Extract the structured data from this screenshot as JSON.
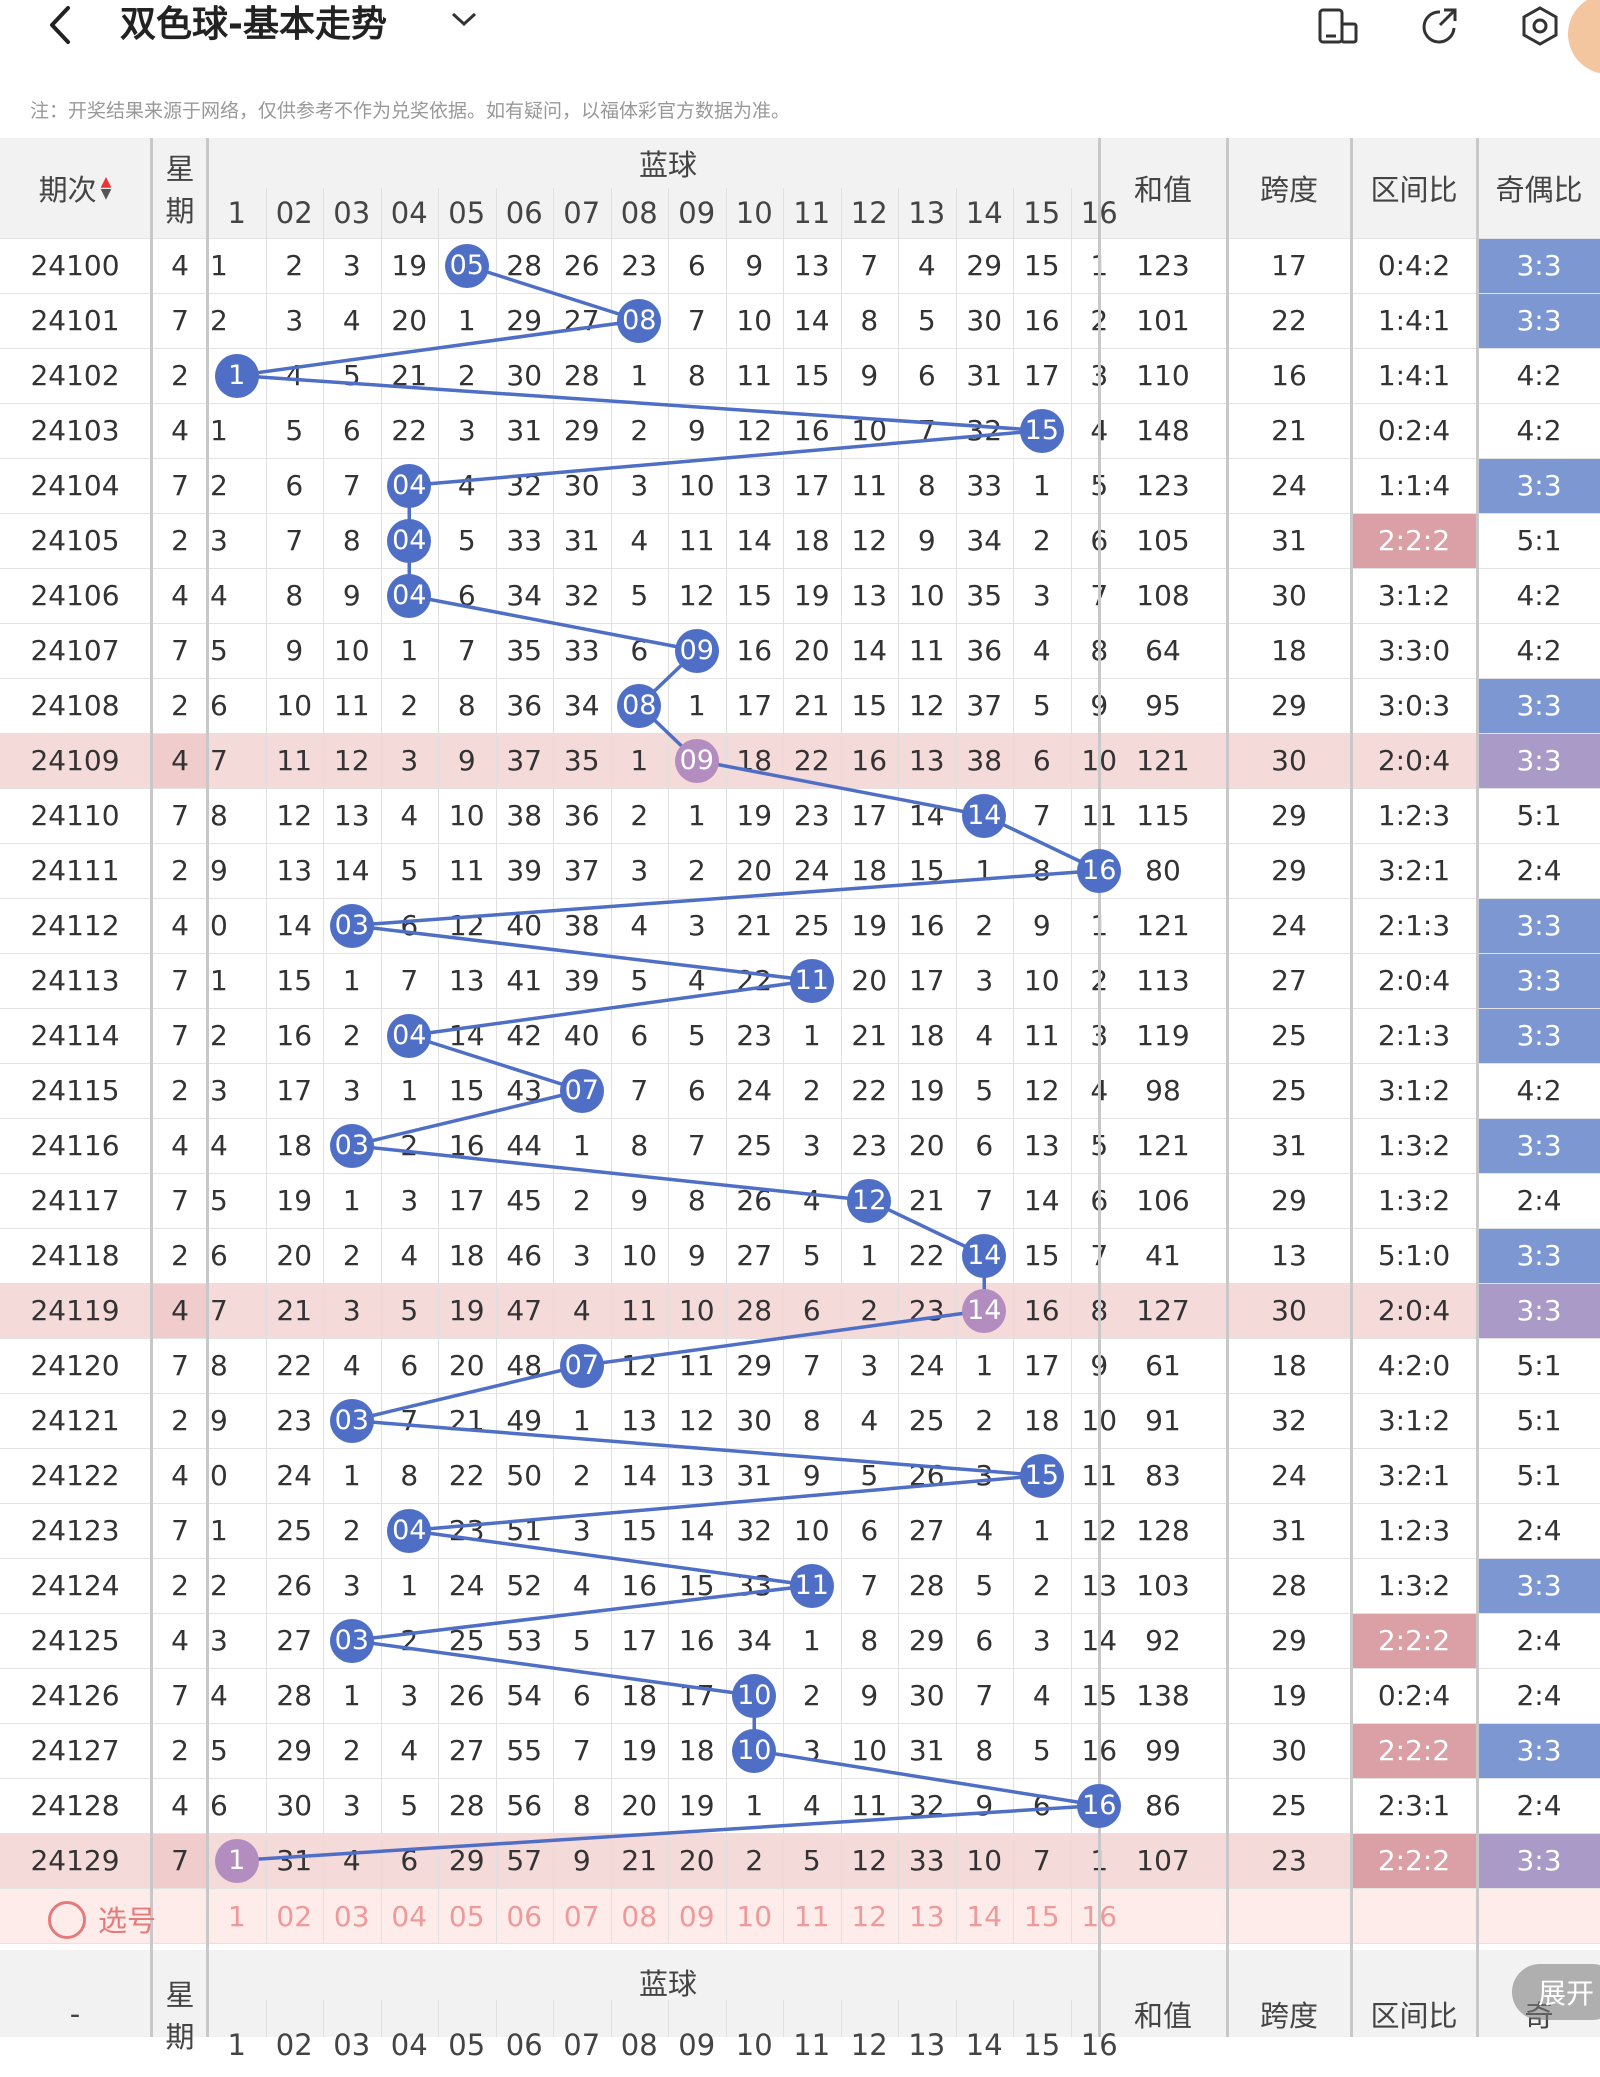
{
  "header": {
    "back_icon": "chevron-left-icon",
    "title": "双色球-基本走势",
    "dropdown_icon": "chevron-down-icon",
    "icons": [
      "device-toggle-icon",
      "share-icon",
      "settings-icon"
    ]
  },
  "note": "注：开奖结果来源于网络，仅供参考不作为兑奖依据。如有疑问，以福体彩官方数据为准。",
  "table": {
    "col_period": "期次",
    "col_week": "星期",
    "col_blue": "蓝球",
    "col_sum": "和值",
    "col_span": "跨度",
    "col_zone": "区间比",
    "col_oddeven": "奇偶比",
    "blue_numbers": [
      "1",
      "02",
      "03",
      "04",
      "05",
      "06",
      "07",
      "08",
      "09",
      "10",
      "11",
      "12",
      "13",
      "14",
      "15",
      "16"
    ],
    "rows": [
      {
        "period": "24100",
        "week": "4",
        "cells": [
          "1",
          "2",
          "3",
          "19",
          "05",
          "28",
          "26",
          "23",
          "6",
          "9",
          "13",
          "7",
          "4",
          "29",
          "15",
          "1"
        ],
        "ball": 5,
        "sum": "123",
        "span": "17",
        "zone": "0:4:2",
        "oe": "3:3"
      },
      {
        "period": "24101",
        "week": "7",
        "cells": [
          "2",
          "3",
          "4",
          "20",
          "1",
          "29",
          "27",
          "08",
          "7",
          "10",
          "14",
          "8",
          "5",
          "30",
          "16",
          "2"
        ],
        "ball": 8,
        "sum": "101",
        "span": "22",
        "zone": "1:4:1",
        "oe": "3:3"
      },
      {
        "period": "24102",
        "week": "2",
        "cells": [
          "1",
          "4",
          "5",
          "21",
          "2",
          "30",
          "28",
          "1",
          "8",
          "11",
          "15",
          "9",
          "6",
          "31",
          "17",
          "3"
        ],
        "ball": 1,
        "sum": "110",
        "span": "16",
        "zone": "1:4:1",
        "oe": "4:2"
      },
      {
        "period": "24103",
        "week": "4",
        "cells": [
          "1",
          "5",
          "6",
          "22",
          "3",
          "31",
          "29",
          "2",
          "9",
          "12",
          "16",
          "10",
          "7",
          "32",
          "15",
          "4"
        ],
        "ball": 15,
        "sum": "148",
        "span": "21",
        "zone": "0:2:4",
        "oe": "4:2"
      },
      {
        "period": "24104",
        "week": "7",
        "cells": [
          "2",
          "6",
          "7",
          "04",
          "4",
          "32",
          "30",
          "3",
          "10",
          "13",
          "17",
          "11",
          "8",
          "33",
          "1",
          "5"
        ],
        "ball": 4,
        "sum": "123",
        "span": "24",
        "zone": "1:1:4",
        "oe": "3:3"
      },
      {
        "period": "24105",
        "week": "2",
        "cells": [
          "3",
          "7",
          "8",
          "04",
          "5",
          "33",
          "31",
          "4",
          "11",
          "14",
          "18",
          "12",
          "9",
          "34",
          "2",
          "6"
        ],
        "ball": 4,
        "sum": "105",
        "span": "31",
        "zone": "2:2:2",
        "oe": "5:1"
      },
      {
        "period": "24106",
        "week": "4",
        "cells": [
          "4",
          "8",
          "9",
          "04",
          "6",
          "34",
          "32",
          "5",
          "12",
          "15",
          "19",
          "13",
          "10",
          "35",
          "3",
          "7"
        ],
        "ball": 4,
        "sum": "108",
        "span": "30",
        "zone": "3:1:2",
        "oe": "4:2"
      },
      {
        "period": "24107",
        "week": "7",
        "cells": [
          "5",
          "9",
          "10",
          "1",
          "7",
          "35",
          "33",
          "6",
          "09",
          "16",
          "20",
          "14",
          "11",
          "36",
          "4",
          "8"
        ],
        "ball": 9,
        "sum": "64",
        "span": "18",
        "zone": "3:3:0",
        "oe": "4:2"
      },
      {
        "period": "24108",
        "week": "2",
        "cells": [
          "6",
          "10",
          "11",
          "2",
          "8",
          "36",
          "34",
          "08",
          "1",
          "17",
          "21",
          "15",
          "12",
          "37",
          "5",
          "9"
        ],
        "ball": 8,
        "sum": "95",
        "span": "29",
        "zone": "3:0:3",
        "oe": "3:3"
      },
      {
        "period": "24109",
        "week": "4",
        "cells": [
          "7",
          "11",
          "12",
          "3",
          "9",
          "37",
          "35",
          "1",
          "09",
          "18",
          "22",
          "16",
          "13",
          "38",
          "6",
          "10"
        ],
        "ball": 9,
        "sum": "121",
        "span": "30",
        "zone": "2:0:4",
        "oe": "3:3",
        "hl": true
      },
      {
        "period": "24110",
        "week": "7",
        "cells": [
          "8",
          "12",
          "13",
          "4",
          "10",
          "38",
          "36",
          "2",
          "1",
          "19",
          "23",
          "17",
          "14",
          "14",
          "7",
          "11"
        ],
        "ball": 14,
        "sum": "115",
        "span": "29",
        "zone": "1:2:3",
        "oe": "5:1"
      },
      {
        "period": "24111",
        "week": "2",
        "cells": [
          "9",
          "13",
          "14",
          "5",
          "11",
          "39",
          "37",
          "3",
          "2",
          "20",
          "24",
          "18",
          "15",
          "1",
          "8",
          "16"
        ],
        "ball": 16,
        "sum": "80",
        "span": "29",
        "zone": "3:2:1",
        "oe": "2:4"
      },
      {
        "period": "24112",
        "week": "4",
        "cells": [
          "0",
          "14",
          "03",
          "6",
          "12",
          "40",
          "38",
          "4",
          "3",
          "21",
          "25",
          "19",
          "16",
          "2",
          "9",
          "1"
        ],
        "ball": 3,
        "sum": "121",
        "span": "24",
        "zone": "2:1:3",
        "oe": "3:3"
      },
      {
        "period": "24113",
        "week": "7",
        "cells": [
          "1",
          "15",
          "1",
          "7",
          "13",
          "41",
          "39",
          "5",
          "4",
          "22",
          "11",
          "20",
          "17",
          "3",
          "10",
          "2"
        ],
        "ball": 11,
        "sum": "113",
        "span": "27",
        "zone": "2:0:4",
        "oe": "3:3"
      },
      {
        "period": "24114",
        "week": "7",
        "cells": [
          "2",
          "16",
          "2",
          "04",
          "14",
          "42",
          "40",
          "6",
          "5",
          "23",
          "1",
          "21",
          "18",
          "4",
          "11",
          "3"
        ],
        "ball": 4,
        "sum": "119",
        "span": "25",
        "zone": "2:1:3",
        "oe": "3:3"
      },
      {
        "period": "24115",
        "week": "2",
        "cells": [
          "3",
          "17",
          "3",
          "1",
          "15",
          "43",
          "07",
          "7",
          "6",
          "24",
          "2",
          "22",
          "19",
          "5",
          "12",
          "4"
        ],
        "ball": 7,
        "sum": "98",
        "span": "25",
        "zone": "3:1:2",
        "oe": "4:2"
      },
      {
        "period": "24116",
        "week": "4",
        "cells": [
          "4",
          "18",
          "03",
          "2",
          "16",
          "44",
          "1",
          "8",
          "7",
          "25",
          "3",
          "23",
          "20",
          "6",
          "13",
          "5"
        ],
        "ball": 3,
        "sum": "121",
        "span": "31",
        "zone": "1:3:2",
        "oe": "3:3"
      },
      {
        "period": "24117",
        "week": "7",
        "cells": [
          "5",
          "19",
          "1",
          "3",
          "17",
          "45",
          "2",
          "9",
          "8",
          "26",
          "4",
          "12",
          "21",
          "7",
          "14",
          "6"
        ],
        "ball": 12,
        "sum": "106",
        "span": "29",
        "zone": "1:3:2",
        "oe": "2:4"
      },
      {
        "period": "24118",
        "week": "2",
        "cells": [
          "6",
          "20",
          "2",
          "4",
          "18",
          "46",
          "3",
          "10",
          "9",
          "27",
          "5",
          "1",
          "22",
          "14",
          "15",
          "7"
        ],
        "ball": 14,
        "sum": "41",
        "span": "13",
        "zone": "5:1:0",
        "oe": "3:3"
      },
      {
        "period": "24119",
        "week": "4",
        "cells": [
          "7",
          "21",
          "3",
          "5",
          "19",
          "47",
          "4",
          "11",
          "10",
          "28",
          "6",
          "2",
          "23",
          "14",
          "16",
          "8"
        ],
        "ball": 14,
        "sum": "127",
        "span": "30",
        "zone": "2:0:4",
        "oe": "3:3",
        "hl": true
      },
      {
        "period": "24120",
        "week": "7",
        "cells": [
          "8",
          "22",
          "4",
          "6",
          "20",
          "48",
          "07",
          "12",
          "11",
          "29",
          "7",
          "3",
          "24",
          "1",
          "17",
          "9"
        ],
        "ball": 7,
        "sum": "61",
        "span": "18",
        "zone": "4:2:0",
        "oe": "5:1"
      },
      {
        "period": "24121",
        "week": "2",
        "cells": [
          "9",
          "23",
          "03",
          "7",
          "21",
          "49",
          "1",
          "13",
          "12",
          "30",
          "8",
          "4",
          "25",
          "2",
          "18",
          "10"
        ],
        "ball": 3,
        "sum": "91",
        "span": "32",
        "zone": "3:1:2",
        "oe": "5:1"
      },
      {
        "period": "24122",
        "week": "4",
        "cells": [
          "0",
          "24",
          "1",
          "8",
          "22",
          "50",
          "2",
          "14",
          "13",
          "31",
          "9",
          "5",
          "26",
          "3",
          "15",
          "11"
        ],
        "ball": 15,
        "sum": "83",
        "span": "24",
        "zone": "3:2:1",
        "oe": "5:1"
      },
      {
        "period": "24123",
        "week": "7",
        "cells": [
          "1",
          "25",
          "2",
          "04",
          "23",
          "51",
          "3",
          "15",
          "14",
          "32",
          "10",
          "6",
          "27",
          "4",
          "1",
          "12"
        ],
        "ball": 4,
        "sum": "128",
        "span": "31",
        "zone": "1:2:3",
        "oe": "2:4"
      },
      {
        "period": "24124",
        "week": "2",
        "cells": [
          "2",
          "26",
          "3",
          "1",
          "24",
          "52",
          "4",
          "16",
          "15",
          "33",
          "11",
          "7",
          "28",
          "5",
          "2",
          "13"
        ],
        "ball": 11,
        "sum": "103",
        "span": "28",
        "zone": "1:3:2",
        "oe": "3:3"
      },
      {
        "period": "24125",
        "week": "4",
        "cells": [
          "3",
          "27",
          "03",
          "2",
          "25",
          "53",
          "5",
          "17",
          "16",
          "34",
          "1",
          "8",
          "29",
          "6",
          "3",
          "14"
        ],
        "ball": 3,
        "sum": "92",
        "span": "29",
        "zone": "2:2:2",
        "oe": "2:4"
      },
      {
        "period": "24126",
        "week": "7",
        "cells": [
          "4",
          "28",
          "1",
          "3",
          "26",
          "54",
          "6",
          "18",
          "17",
          "10",
          "2",
          "9",
          "30",
          "7",
          "4",
          "15"
        ],
        "ball": 10,
        "sum": "138",
        "span": "19",
        "zone": "0:2:4",
        "oe": "2:4"
      },
      {
        "period": "24127",
        "week": "2",
        "cells": [
          "5",
          "29",
          "2",
          "4",
          "27",
          "55",
          "7",
          "19",
          "18",
          "10",
          "3",
          "10",
          "31",
          "8",
          "5",
          "16"
        ],
        "ball": 10,
        "sum": "99",
        "span": "30",
        "zone": "2:2:2",
        "oe": "3:3"
      },
      {
        "period": "24128",
        "week": "4",
        "cells": [
          "6",
          "30",
          "3",
          "5",
          "28",
          "56",
          "8",
          "20",
          "19",
          "1",
          "4",
          "11",
          "32",
          "9",
          "6",
          "16"
        ],
        "ball": 16,
        "sum": "86",
        "span": "25",
        "zone": "2:3:1",
        "oe": "2:4"
      },
      {
        "period": "24129",
        "week": "7",
        "cells": [
          "1",
          "31",
          "4",
          "6",
          "29",
          "57",
          "9",
          "21",
          "20",
          "2",
          "5",
          "12",
          "33",
          "10",
          "7",
          "1"
        ],
        "ball": 1,
        "sum": "107",
        "span": "23",
        "zone": "2:2:2",
        "oe": "3:3",
        "hl": true
      }
    ],
    "select_label": "选号",
    "footer_period": "-",
    "footer_oddeven": "奇",
    "colors": {
      "accent": "#4f6fc6",
      "highlight_row": "#f5dada",
      "highlight_cell": "#f0cccc",
      "zone_red": "#dba0a5",
      "oe_blue": "#7d97d2",
      "oe_purple": "#a99ac7",
      "ball_purple": "#b48dc0"
    }
  },
  "expand_label": "展开"
}
